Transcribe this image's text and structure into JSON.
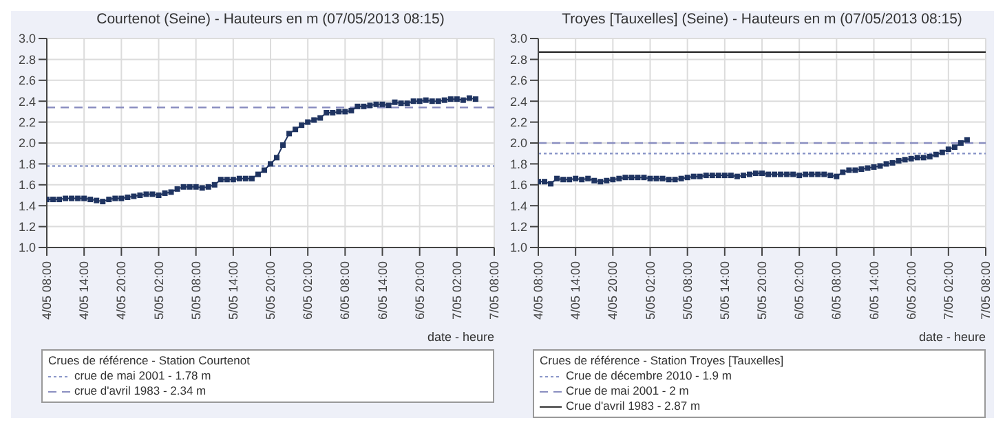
{
  "chart_data": [
    {
      "type": "line",
      "title": "Courtenot (Seine) - Hauteurs en m (07/05/2013 08:15)",
      "xlabel": "date - heure",
      "legend_title": "Crues de référence - Station Courtenot",
      "legend": "bottom",
      "grid": true,
      "marker": "square",
      "line_style": "solid",
      "xlim": [
        "2013-05-04T08:00",
        "2013-05-07T08:00"
      ],
      "xticks": [
        {
          "value": "2013-05-04T08:00",
          "label": "4/05 08:00"
        },
        {
          "value": "2013-05-04T14:00",
          "label": "4/05 14:00"
        },
        {
          "value": "2013-05-04T20:00",
          "label": "4/05 20:00"
        },
        {
          "value": "2013-05-05T02:00",
          "label": "5/05 02:00"
        },
        {
          "value": "2013-05-05T08:00",
          "label": "5/05 08:00"
        },
        {
          "value": "2013-05-05T14:00",
          "label": "5/05 14:00"
        },
        {
          "value": "2013-05-05T20:00",
          "label": "5/05 20:00"
        },
        {
          "value": "2013-05-06T02:00",
          "label": "6/05 02:00"
        },
        {
          "value": "2013-05-06T08:00",
          "label": "6/05 08:00"
        },
        {
          "value": "2013-05-06T14:00",
          "label": "6/05 14:00"
        },
        {
          "value": "2013-05-06T20:00",
          "label": "6/05 20:00"
        },
        {
          "value": "2013-05-07T02:00",
          "label": "7/05 02:00"
        },
        {
          "value": "2013-05-07T08:00",
          "label": "7/05 08:00"
        }
      ],
      "ylim": [
        1,
        3
      ],
      "yticks": [
        {
          "value": 1,
          "label": "1.0"
        },
        {
          "value": 1.2,
          "label": "1.2"
        },
        {
          "value": 1.4,
          "label": "1.4"
        },
        {
          "value": 1.6,
          "label": "1.6"
        },
        {
          "value": 1.8,
          "label": "1.8"
        },
        {
          "value": 2,
          "label": "2.0"
        },
        {
          "value": 2.2,
          "label": "2.2"
        },
        {
          "value": 2.4,
          "label": "2.4"
        },
        {
          "value": 2.6,
          "label": "2.6"
        },
        {
          "value": 2.8,
          "label": "2.8"
        },
        {
          "value": 3,
          "label": "3.0"
        }
      ],
      "x": [
        "2013-05-04T08:00",
        "2013-05-04T09:00",
        "2013-05-04T10:00",
        "2013-05-04T11:00",
        "2013-05-04T12:00",
        "2013-05-04T13:00",
        "2013-05-04T14:00",
        "2013-05-04T15:00",
        "2013-05-04T16:00",
        "2013-05-04T17:00",
        "2013-05-04T18:00",
        "2013-05-04T19:00",
        "2013-05-04T20:00",
        "2013-05-04T21:00",
        "2013-05-04T22:00",
        "2013-05-04T23:00",
        "2013-05-05T00:00",
        "2013-05-05T01:00",
        "2013-05-05T02:00",
        "2013-05-05T03:00",
        "2013-05-05T04:00",
        "2013-05-05T05:00",
        "2013-05-05T06:00",
        "2013-05-05T07:00",
        "2013-05-05T08:00",
        "2013-05-05T09:00",
        "2013-05-05T10:00",
        "2013-05-05T11:00",
        "2013-05-05T12:00",
        "2013-05-05T13:00",
        "2013-05-05T14:00",
        "2013-05-05T15:00",
        "2013-05-05T16:00",
        "2013-05-05T17:00",
        "2013-05-05T18:00",
        "2013-05-05T19:00",
        "2013-05-05T20:00",
        "2013-05-05T21:00",
        "2013-05-05T22:00",
        "2013-05-05T23:00",
        "2013-05-06T00:00",
        "2013-05-06T01:00",
        "2013-05-06T02:00",
        "2013-05-06T03:00",
        "2013-05-06T04:00",
        "2013-05-06T05:00",
        "2013-05-06T06:00",
        "2013-05-06T07:00",
        "2013-05-06T08:00",
        "2013-05-06T09:00",
        "2013-05-06T10:00",
        "2013-05-06T11:00",
        "2013-05-06T12:00",
        "2013-05-06T13:00",
        "2013-05-06T14:00",
        "2013-05-06T15:00",
        "2013-05-06T16:00",
        "2013-05-06T17:00",
        "2013-05-06T18:00",
        "2013-05-06T19:00",
        "2013-05-06T20:00",
        "2013-05-06T21:00",
        "2013-05-06T22:00",
        "2013-05-06T23:00",
        "2013-05-07T00:00",
        "2013-05-07T01:00",
        "2013-05-07T02:00",
        "2013-05-07T03:00",
        "2013-05-07T04:00",
        "2013-05-07T05:00"
      ],
      "series": [
        {
          "color": "#1f3461",
          "values": [
            1.46,
            1.46,
            1.46,
            1.47,
            1.47,
            1.47,
            1.47,
            1.46,
            1.45,
            1.44,
            1.46,
            1.47,
            1.47,
            1.48,
            1.49,
            1.5,
            1.51,
            1.51,
            1.5,
            1.52,
            1.53,
            1.56,
            1.58,
            1.58,
            1.58,
            1.57,
            1.58,
            1.6,
            1.65,
            1.65,
            1.65,
            1.66,
            1.66,
            1.66,
            1.7,
            1.74,
            1.8,
            1.86,
            1.98,
            2.09,
            2.13,
            2.17,
            2.2,
            2.22,
            2.24,
            2.29,
            2.29,
            2.3,
            2.3,
            2.31,
            2.35,
            2.35,
            2.36,
            2.37,
            2.37,
            2.36,
            2.39,
            2.38,
            2.38,
            2.4,
            2.4,
            2.41,
            2.4,
            2.4,
            2.41,
            2.42,
            2.42,
            2.41,
            2.43,
            2.42
          ]
        }
      ],
      "ref_lines": [
        {
          "axis": "y",
          "value": 1.78,
          "label": "crue de mai 2001 - 1.78 m",
          "color": "#8a96c8",
          "line_style": "dotted"
        },
        {
          "axis": "y",
          "value": 2.34,
          "label": "crue d'avril 1983 - 2.34 m",
          "color": "#8a8ec0",
          "line_style": "dashed"
        }
      ]
    },
    {
      "type": "line",
      "title": "Troyes [Tauxelles] (Seine) - Hauteurs en m (07/05/2013 08:15)",
      "xlabel": "date - heure",
      "legend_title": "Crues de référence - Station Troyes [Tauxelles]",
      "legend": "bottom",
      "grid": true,
      "marker": "square",
      "line_style": "solid",
      "xlim": [
        "2013-05-04T08:00",
        "2013-05-07T08:00"
      ],
      "xticks": [
        {
          "value": "2013-05-04T08:00",
          "label": "4/05 08:00"
        },
        {
          "value": "2013-05-04T14:00",
          "label": "4/05 14:00"
        },
        {
          "value": "2013-05-04T20:00",
          "label": "4/05 20:00"
        },
        {
          "value": "2013-05-05T02:00",
          "label": "5/05 02:00"
        },
        {
          "value": "2013-05-05T08:00",
          "label": "5/05 08:00"
        },
        {
          "value": "2013-05-05T14:00",
          "label": "5/05 14:00"
        },
        {
          "value": "2013-05-05T20:00",
          "label": "5/05 20:00"
        },
        {
          "value": "2013-05-06T02:00",
          "label": "6/05 02:00"
        },
        {
          "value": "2013-05-06T08:00",
          "label": "6/05 08:00"
        },
        {
          "value": "2013-05-06T14:00",
          "label": "6/05 14:00"
        },
        {
          "value": "2013-05-06T20:00",
          "label": "6/05 20:00"
        },
        {
          "value": "2013-05-07T02:00",
          "label": "7/05 02:00"
        },
        {
          "value": "2013-05-07T08:00",
          "label": "7/05 08:00"
        }
      ],
      "ylim": [
        1,
        3
      ],
      "yticks": [
        {
          "value": 1,
          "label": "1.0"
        },
        {
          "value": 1.2,
          "label": "1.2"
        },
        {
          "value": 1.4,
          "label": "1.4"
        },
        {
          "value": 1.6,
          "label": "1.6"
        },
        {
          "value": 1.8,
          "label": "1.8"
        },
        {
          "value": 2,
          "label": "2.0"
        },
        {
          "value": 2.2,
          "label": "2.2"
        },
        {
          "value": 2.4,
          "label": "2.4"
        },
        {
          "value": 2.6,
          "label": "2.6"
        },
        {
          "value": 2.8,
          "label": "2.8"
        },
        {
          "value": 3,
          "label": "3.0"
        }
      ],
      "x": [
        "2013-05-04T08:00",
        "2013-05-04T09:00",
        "2013-05-04T10:00",
        "2013-05-04T11:00",
        "2013-05-04T12:00",
        "2013-05-04T13:00",
        "2013-05-04T14:00",
        "2013-05-04T15:00",
        "2013-05-04T16:00",
        "2013-05-04T17:00",
        "2013-05-04T18:00",
        "2013-05-04T19:00",
        "2013-05-04T20:00",
        "2013-05-04T21:00",
        "2013-05-04T22:00",
        "2013-05-04T23:00",
        "2013-05-05T00:00",
        "2013-05-05T01:00",
        "2013-05-05T02:00",
        "2013-05-05T03:00",
        "2013-05-05T04:00",
        "2013-05-05T05:00",
        "2013-05-05T06:00",
        "2013-05-05T07:00",
        "2013-05-05T08:00",
        "2013-05-05T09:00",
        "2013-05-05T10:00",
        "2013-05-05T11:00",
        "2013-05-05T12:00",
        "2013-05-05T13:00",
        "2013-05-05T14:00",
        "2013-05-05T15:00",
        "2013-05-05T16:00",
        "2013-05-05T17:00",
        "2013-05-05T18:00",
        "2013-05-05T19:00",
        "2013-05-05T20:00",
        "2013-05-05T21:00",
        "2013-05-05T22:00",
        "2013-05-05T23:00",
        "2013-05-06T00:00",
        "2013-05-06T01:00",
        "2013-05-06T02:00",
        "2013-05-06T03:00",
        "2013-05-06T04:00",
        "2013-05-06T05:00",
        "2013-05-06T06:00",
        "2013-05-06T07:00",
        "2013-05-06T08:00",
        "2013-05-06T09:00",
        "2013-05-06T10:00",
        "2013-05-06T11:00",
        "2013-05-06T12:00",
        "2013-05-06T13:00",
        "2013-05-06T14:00",
        "2013-05-06T15:00",
        "2013-05-06T16:00",
        "2013-05-06T17:00",
        "2013-05-06T18:00",
        "2013-05-06T19:00",
        "2013-05-06T20:00",
        "2013-05-06T21:00",
        "2013-05-06T22:00",
        "2013-05-06T23:00",
        "2013-05-07T00:00",
        "2013-05-07T01:00",
        "2013-05-07T02:00",
        "2013-05-07T03:00",
        "2013-05-07T04:00",
        "2013-05-07T05:00"
      ],
      "series": [
        {
          "color": "#1f3461",
          "values": [
            1.63,
            1.63,
            1.61,
            1.66,
            1.65,
            1.65,
            1.66,
            1.65,
            1.66,
            1.64,
            1.63,
            1.64,
            1.65,
            1.66,
            1.67,
            1.67,
            1.67,
            1.67,
            1.66,
            1.66,
            1.66,
            1.65,
            1.65,
            1.66,
            1.67,
            1.68,
            1.68,
            1.69,
            1.69,
            1.69,
            1.69,
            1.69,
            1.68,
            1.69,
            1.7,
            1.71,
            1.71,
            1.7,
            1.7,
            1.7,
            1.7,
            1.7,
            1.69,
            1.7,
            1.7,
            1.7,
            1.7,
            1.69,
            1.68,
            1.72,
            1.74,
            1.74,
            1.75,
            1.76,
            1.77,
            1.78,
            1.8,
            1.81,
            1.83,
            1.84,
            1.85,
            1.86,
            1.86,
            1.87,
            1.89,
            1.91,
            1.94,
            1.96,
            2.0,
            2.03
          ]
        }
      ],
      "ref_lines": [
        {
          "axis": "y",
          "value": 1.9,
          "label": "Crue de décembre 2010 - 1.9 m",
          "color": "#8a96c8",
          "line_style": "dotted"
        },
        {
          "axis": "y",
          "value": 2,
          "label": "Crue de mai 2001 - 2 m",
          "color": "#8a8ec0",
          "line_style": "dashed"
        },
        {
          "axis": "y",
          "value": 2.87,
          "label": "Crue d'avril 1983 - 2.87 m",
          "color": "#333333",
          "line_style": "solid"
        }
      ]
    }
  ]
}
